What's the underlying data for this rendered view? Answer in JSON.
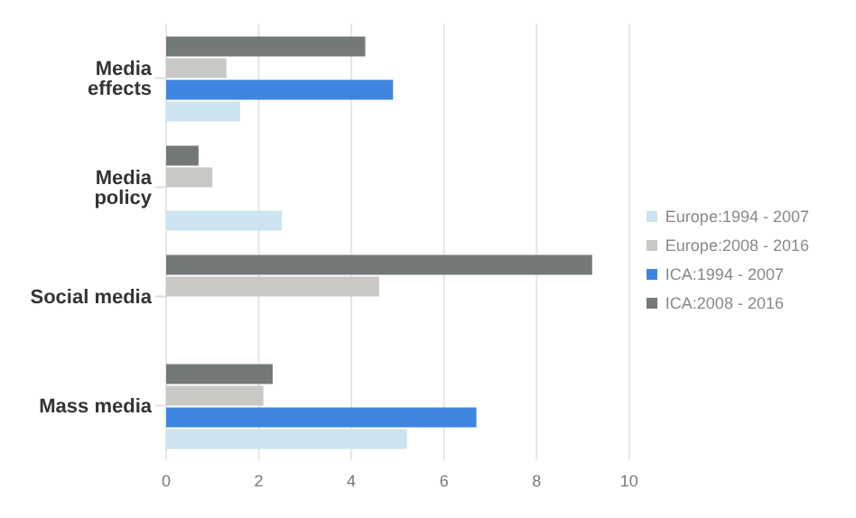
{
  "chart_data": {
    "type": "bar",
    "orientation": "horizontal",
    "categories": [
      "Media effects",
      "Media policy",
      "Social media",
      "Mass media"
    ],
    "series": [
      {
        "name": "ICA:2008 - 2016",
        "color": "#737878",
        "values": [
          4.3,
          0.7,
          9.2,
          2.3
        ]
      },
      {
        "name": "Europe:2008 - 2016",
        "color": "#c8c9c5",
        "values": [
          1.3,
          1.0,
          4.6,
          2.1
        ]
      },
      {
        "name": "ICA:1994 - 2007",
        "color": "#3d85e0",
        "values": [
          4.9,
          null,
          null,
          6.7
        ]
      },
      {
        "name": "Europe:1994 - 2007",
        "color": "#cce3f0",
        "values": [
          1.6,
          2.5,
          null,
          5.2
        ]
      }
    ],
    "xlim": [
      0,
      10
    ],
    "xticks": [
      0,
      2,
      4,
      6,
      8,
      10
    ],
    "grid": "x",
    "legend": "right"
  }
}
